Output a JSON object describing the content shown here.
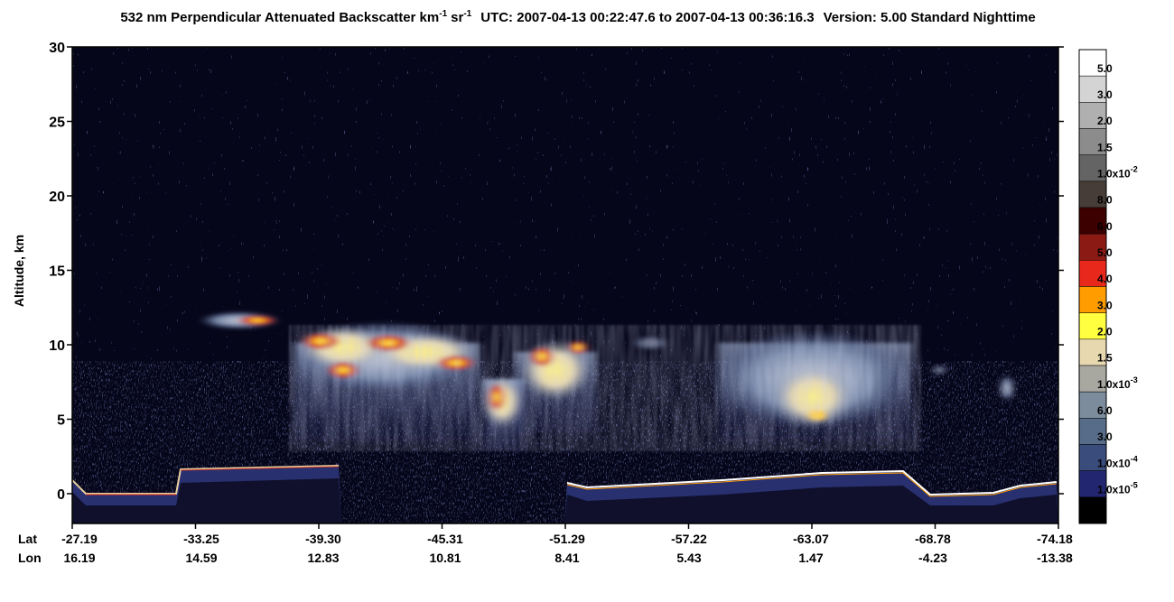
{
  "chart_data": {
    "type": "curtain",
    "title": {
      "main": "532 nm Perpendicular Attenuated Backscatter km",
      "km_exponent": "-1",
      "sr": "sr",
      "sr_exponent": "-1",
      "time": "UTC: 2007-04-13 00:22:47.6 to 2007-04-13 00:36:16.3",
      "version": "Version: 5.00 Standard Nighttime"
    },
    "y_label": "Altitude, km",
    "ylim": [
      -2,
      30
    ],
    "yticks": [
      0,
      5,
      10,
      15,
      20,
      25,
      30
    ],
    "x_row_labels": [
      "Lat",
      "Lon"
    ],
    "lat": [
      "-27.19",
      "-33.25",
      "-39.30",
      "-45.31",
      "-51.29",
      "-57.22",
      "-63.07",
      "-68.78",
      "-74.18"
    ],
    "lon": [
      "16.19",
      "14.59",
      "12.83",
      "10.81",
      "8.41",
      "5.43",
      "1.47",
      "-4.23",
      "-13.38"
    ],
    "colorbar": [
      {
        "label": "5.0",
        "color": "#ffffff"
      },
      {
        "label": "3.0",
        "color": "#d4d4d4"
      },
      {
        "label": "2.0",
        "color": "#b0b0b0"
      },
      {
        "label": "1.5",
        "color": "#8c8c8c"
      },
      {
        "label": "1.0x10",
        "exponent": "-2",
        "color": "#646464"
      },
      {
        "label": "8.0",
        "color": "#463c38"
      },
      {
        "label": "6.0",
        "color": "#3c0000"
      },
      {
        "label": "5.0",
        "color": "#8c1a14"
      },
      {
        "label": "4.0",
        "color": "#e8281a"
      },
      {
        "label": "3.0",
        "color": "#ff9c00"
      },
      {
        "label": "2.0",
        "color": "#ffff40"
      },
      {
        "label": "1.5",
        "color": "#e8d8b0"
      },
      {
        "label": "1.0x10",
        "exponent": "-3",
        "color": "#a8a8a0"
      },
      {
        "label": "6.0",
        "color": "#7c8c9c"
      },
      {
        "label": "3.0",
        "color": "#566c88"
      },
      {
        "label": "1.0x10",
        "exponent": "-4",
        "color": "#3a4c7c"
      },
      {
        "label": "1.0x10",
        "exponent": "-5",
        "color": "#222670"
      },
      {
        "color": "#000000"
      }
    ]
  }
}
